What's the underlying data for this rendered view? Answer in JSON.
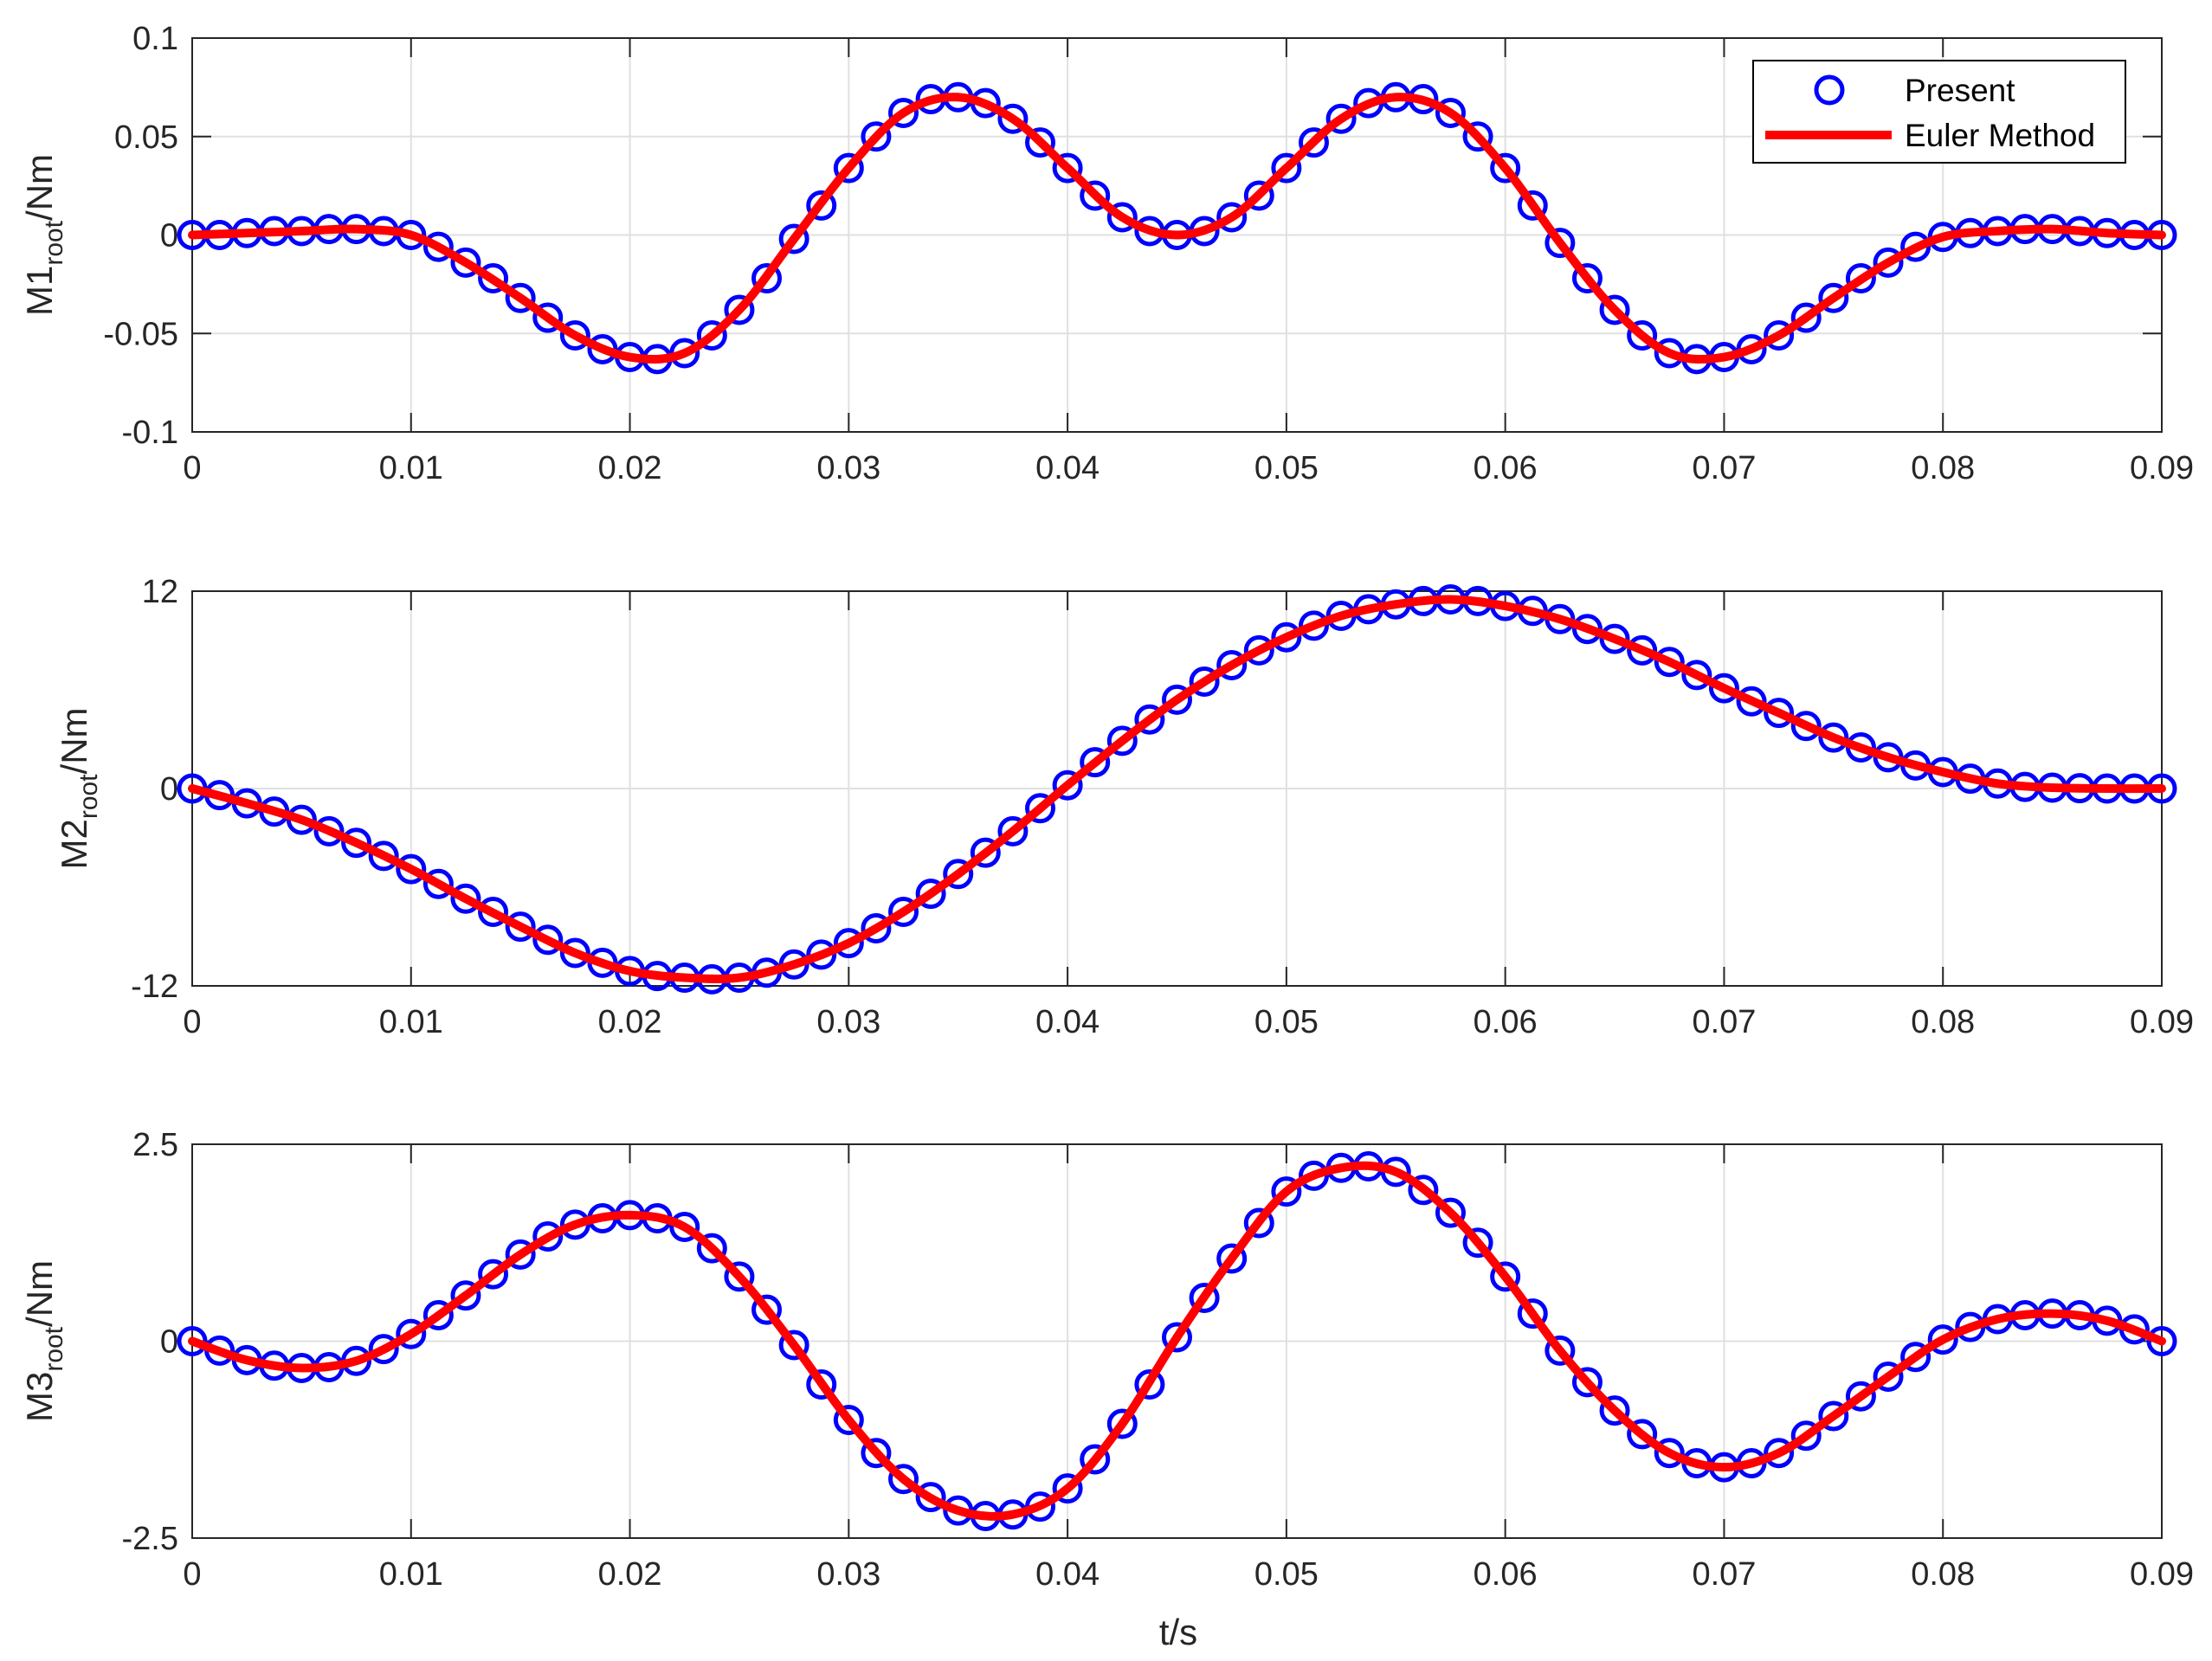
{
  "colors": {
    "present": "#0000ff",
    "euler": "#ff0000",
    "grid": "#e0e0e0",
    "axis": "#262626",
    "legend_border": "#000000"
  },
  "legend": {
    "location": "top-right of first panel",
    "entries": [
      "Present",
      "Euler Method"
    ]
  },
  "xlabel": "t/s",
  "chart_data": [
    {
      "type": "line",
      "ylabel": {
        "base": "M1",
        "sub": "root",
        "tail": "/Nm"
      },
      "xlim": [
        0,
        0.09
      ],
      "ylim": [
        -0.1,
        0.1
      ],
      "xticks": [
        0,
        0.01,
        0.02,
        0.03,
        0.04,
        0.05,
        0.06,
        0.07,
        0.08,
        0.09
      ],
      "xtick_labels": [
        "0",
        "0.01",
        "0.02",
        "0.03",
        "0.04",
        "0.05",
        "0.06",
        "0.07",
        "0.08",
        "0.09"
      ],
      "yticks": [
        -0.1,
        -0.05,
        0,
        0.05,
        0.1
      ],
      "ytick_labels": [
        "-0.1",
        "-0.05",
        "0",
        "0.05",
        "0.1"
      ],
      "grid": true,
      "series": [
        {
          "name": "Present",
          "style": "markers",
          "x": [
            0,
            0.00125,
            0.0025,
            0.00375,
            0.005,
            0.00625,
            0.0075,
            0.00875,
            0.01,
            0.01125,
            0.0125,
            0.01375,
            0.015,
            0.01625,
            0.0175,
            0.01875,
            0.02,
            0.02125,
            0.0225,
            0.02375,
            0.025,
            0.02625,
            0.0275,
            0.02875,
            0.03,
            0.03125,
            0.0325,
            0.03375,
            0.035,
            0.03625,
            0.0375,
            0.03875,
            0.04,
            0.04125,
            0.0425,
            0.04375,
            0.045,
            0.04625,
            0.0475,
            0.04875,
            0.05,
            0.05125,
            0.0525,
            0.05375,
            0.055,
            0.05625,
            0.0575,
            0.05875,
            0.06,
            0.06125,
            0.0625,
            0.06375,
            0.065,
            0.06625,
            0.0675,
            0.06875,
            0.07,
            0.07125,
            0.0725,
            0.07375,
            0.075,
            0.07625,
            0.0775,
            0.07875,
            0.08,
            0.08125,
            0.0825,
            0.08375,
            0.085,
            0.08625,
            0.0875,
            0.08875,
            0.09
          ],
          "y": [
            0,
            0,
            0.001,
            0.002,
            0.002,
            0.003,
            0.003,
            0.002,
            0,
            -0.006,
            -0.014,
            -0.022,
            -0.032,
            -0.042,
            -0.051,
            -0.058,
            -0.062,
            -0.063,
            -0.06,
            -0.051,
            -0.038,
            -0.022,
            -0.002,
            0.015,
            0.034,
            0.05,
            0.062,
            0.069,
            0.07,
            0.067,
            0.059,
            0.047,
            0.034,
            0.02,
            0.009,
            0.002,
            0,
            0.002,
            0.009,
            0.02,
            0.034,
            0.047,
            0.059,
            0.067,
            0.07,
            0.069,
            0.062,
            0.05,
            0.034,
            0.015,
            -0.004,
            -0.022,
            -0.038,
            -0.051,
            -0.06,
            -0.063,
            -0.062,
            -0.058,
            -0.051,
            -0.042,
            -0.032,
            -0.022,
            -0.014,
            -0.006,
            -0.001,
            0.001,
            0.002,
            0.003,
            0.003,
            0.002,
            0.001,
            0,
            0
          ]
        },
        {
          "name": "Euler Method",
          "style": "line",
          "x": [
            0,
            0.0025,
            0.005,
            0.0075,
            0.01,
            0.0125,
            0.015,
            0.0175,
            0.02,
            0.0225,
            0.025,
            0.0275,
            0.03,
            0.0325,
            0.035,
            0.0375,
            0.04,
            0.0425,
            0.045,
            0.0475,
            0.05,
            0.0525,
            0.055,
            0.0575,
            0.06,
            0.0625,
            0.065,
            0.0675,
            0.07,
            0.0725,
            0.075,
            0.0775,
            0.08,
            0.0825,
            0.085,
            0.0875,
            0.09
          ],
          "y": [
            0,
            0.001,
            0.002,
            0.003,
            0,
            -0.014,
            -0.032,
            -0.051,
            -0.062,
            -0.06,
            -0.038,
            -0.002,
            0.034,
            0.062,
            0.07,
            0.059,
            0.034,
            0.009,
            0,
            0.009,
            0.034,
            0.059,
            0.07,
            0.062,
            0.034,
            -0.004,
            -0.038,
            -0.06,
            -0.062,
            -0.051,
            -0.032,
            -0.014,
            -0.001,
            0.002,
            0.003,
            0.001,
            0
          ]
        }
      ]
    },
    {
      "type": "line",
      "ylabel": {
        "base": "M2",
        "sub": "root",
        "tail": "/Nm"
      },
      "xlim": [
        0,
        0.09
      ],
      "ylim": [
        -12,
        12
      ],
      "xticks": [
        0,
        0.01,
        0.02,
        0.03,
        0.04,
        0.05,
        0.06,
        0.07,
        0.08,
        0.09
      ],
      "xtick_labels": [
        "0",
        "0.01",
        "0.02",
        "0.03",
        "0.04",
        "0.05",
        "0.06",
        "0.07",
        "0.08",
        "0.09"
      ],
      "yticks": [
        -12,
        0,
        12
      ],
      "ytick_labels": [
        "-12",
        "0",
        "12"
      ],
      "grid": true,
      "series": [
        {
          "name": "Present",
          "style": "markers",
          "x": [
            0,
            0.00125,
            0.0025,
            0.00375,
            0.005,
            0.00625,
            0.0075,
            0.00875,
            0.01,
            0.01125,
            0.0125,
            0.01375,
            0.015,
            0.01625,
            0.0175,
            0.01875,
            0.02,
            0.02125,
            0.0225,
            0.02375,
            0.025,
            0.02625,
            0.0275,
            0.02875,
            0.03,
            0.03125,
            0.0325,
            0.03375,
            0.035,
            0.03625,
            0.0375,
            0.03875,
            0.04,
            0.04125,
            0.0425,
            0.04375,
            0.045,
            0.04625,
            0.0475,
            0.04875,
            0.05,
            0.05125,
            0.0525,
            0.05375,
            0.055,
            0.05625,
            0.0575,
            0.05875,
            0.06,
            0.06125,
            0.0625,
            0.06375,
            0.065,
            0.06625,
            0.0675,
            0.06875,
            0.07,
            0.07125,
            0.0725,
            0.07375,
            0.075,
            0.07625,
            0.0775,
            0.07875,
            0.08,
            0.08125,
            0.0825,
            0.08375,
            0.085,
            0.08625,
            0.0875,
            0.08875,
            0.09
          ],
          "y": [
            0,
            -0.4,
            -0.9,
            -1.4,
            -1.9,
            -2.6,
            -3.3,
            -4.1,
            -4.9,
            -5.8,
            -6.7,
            -7.5,
            -8.4,
            -9.2,
            -10,
            -10.6,
            -11.1,
            -11.4,
            -11.5,
            -11.6,
            -11.5,
            -11.2,
            -10.7,
            -10.1,
            -9.4,
            -8.5,
            -7.5,
            -6.4,
            -5.2,
            -3.9,
            -2.6,
            -1.2,
            0.2,
            1.6,
            2.9,
            4.2,
            5.4,
            6.5,
            7.5,
            8.4,
            9.2,
            9.9,
            10.5,
            10.9,
            11.2,
            11.4,
            11.5,
            11.4,
            11.1,
            10.8,
            10.3,
            9.7,
            9.1,
            8.4,
            7.7,
            6.9,
            6.1,
            5.3,
            4.6,
            3.8,
            3.1,
            2.5,
            1.9,
            1.4,
            1,
            0.6,
            0.3,
            0.1,
            0.05,
            0.02,
            0,
            0,
            0
          ]
        },
        {
          "name": "Euler Method",
          "style": "line",
          "x": [
            0,
            0.0025,
            0.005,
            0.0075,
            0.01,
            0.0125,
            0.015,
            0.0175,
            0.02,
            0.0225,
            0.025,
            0.0275,
            0.03,
            0.0325,
            0.035,
            0.0375,
            0.04,
            0.0425,
            0.045,
            0.0475,
            0.05,
            0.0525,
            0.055,
            0.0575,
            0.06,
            0.0625,
            0.065,
            0.0675,
            0.07,
            0.0725,
            0.075,
            0.0775,
            0.08,
            0.0825,
            0.085,
            0.0875,
            0.09
          ],
          "y": [
            0,
            -0.9,
            -1.9,
            -3.3,
            -4.9,
            -6.7,
            -8.4,
            -10,
            -11.1,
            -11.5,
            -11.5,
            -10.7,
            -9.4,
            -7.5,
            -5.2,
            -2.6,
            0.2,
            2.9,
            5.4,
            7.5,
            9.2,
            10.5,
            11.2,
            11.5,
            11.1,
            10.3,
            9.1,
            7.7,
            6.1,
            4.6,
            3.1,
            1.9,
            1,
            0.3,
            0.05,
            0,
            0
          ]
        }
      ]
    },
    {
      "type": "line",
      "ylabel": {
        "base": "M3",
        "sub": "root",
        "tail": "/Nm"
      },
      "xlim": [
        0,
        0.09
      ],
      "ylim": [
        -2.5,
        2.5
      ],
      "xticks": [
        0,
        0.01,
        0.02,
        0.03,
        0.04,
        0.05,
        0.06,
        0.07,
        0.08,
        0.09
      ],
      "xtick_labels": [
        "0",
        "0.01",
        "0.02",
        "0.03",
        "0.04",
        "0.05",
        "0.06",
        "0.07",
        "0.08",
        "0.09"
      ],
      "yticks": [
        -2.5,
        0,
        2.5
      ],
      "ytick_labels": [
        "-2.5",
        "0",
        "2.5"
      ],
      "grid": true,
      "series": [
        {
          "name": "Present",
          "style": "markers",
          "x": [
            0,
            0.00125,
            0.0025,
            0.00375,
            0.005,
            0.00625,
            0.0075,
            0.00875,
            0.01,
            0.01125,
            0.0125,
            0.01375,
            0.015,
            0.01625,
            0.0175,
            0.01875,
            0.02,
            0.02125,
            0.0225,
            0.02375,
            0.025,
            0.02625,
            0.0275,
            0.02875,
            0.03,
            0.03125,
            0.0325,
            0.03375,
            0.035,
            0.03625,
            0.0375,
            0.03875,
            0.04,
            0.04125,
            0.0425,
            0.04375,
            0.045,
            0.04625,
            0.0475,
            0.04875,
            0.05,
            0.05125,
            0.0525,
            0.05375,
            0.055,
            0.05625,
            0.0575,
            0.05875,
            0.06,
            0.06125,
            0.0625,
            0.06375,
            0.065,
            0.06625,
            0.0675,
            0.06875,
            0.07,
            0.07125,
            0.0725,
            0.07375,
            0.075,
            0.07625,
            0.0775,
            0.07875,
            0.08,
            0.08125,
            0.0825,
            0.08375,
            0.085,
            0.08625,
            0.0875,
            0.08875,
            0.09
          ],
          "y": [
            0,
            -0.12,
            -0.24,
            -0.31,
            -0.34,
            -0.33,
            -0.25,
            -0.1,
            0.09,
            0.33,
            0.58,
            0.85,
            1.1,
            1.33,
            1.48,
            1.56,
            1.6,
            1.56,
            1.45,
            1.18,
            0.82,
            0.4,
            -0.05,
            -0.55,
            -1,
            -1.42,
            -1.75,
            -1.98,
            -2.15,
            -2.22,
            -2.2,
            -2.1,
            -1.87,
            -1.5,
            -1.05,
            -0.55,
            0.05,
            0.55,
            1.05,
            1.5,
            1.9,
            2.1,
            2.2,
            2.22,
            2.15,
            1.92,
            1.63,
            1.25,
            0.82,
            0.35,
            -0.12,
            -0.52,
            -0.88,
            -1.18,
            -1.42,
            -1.55,
            -1.6,
            -1.55,
            -1.42,
            -1.2,
            -0.95,
            -0.7,
            -0.45,
            -0.2,
            0.02,
            0.18,
            0.28,
            0.33,
            0.35,
            0.33,
            0.26,
            0.15,
            0
          ]
        },
        {
          "name": "Euler Method",
          "style": "line",
          "x": [
            0,
            0.0025,
            0.005,
            0.0075,
            0.01,
            0.0125,
            0.015,
            0.0175,
            0.02,
            0.0225,
            0.025,
            0.0275,
            0.03,
            0.0325,
            0.035,
            0.0375,
            0.04,
            0.0425,
            0.045,
            0.0475,
            0.05,
            0.0525,
            0.055,
            0.0575,
            0.06,
            0.0625,
            0.065,
            0.0675,
            0.07,
            0.0725,
            0.075,
            0.0775,
            0.08,
            0.0825,
            0.085,
            0.0875,
            0.09
          ],
          "y": [
            0,
            -0.24,
            -0.34,
            -0.25,
            0.09,
            0.58,
            1.1,
            1.48,
            1.6,
            1.45,
            0.82,
            -0.05,
            -1,
            -1.75,
            -2.15,
            -2.2,
            -1.87,
            -1.05,
            0.05,
            1.05,
            1.9,
            2.2,
            2.15,
            1.63,
            0.82,
            -0.12,
            -0.88,
            -1.42,
            -1.6,
            -1.42,
            -0.95,
            -0.45,
            0.02,
            0.28,
            0.35,
            0.26,
            0
          ]
        }
      ]
    }
  ]
}
